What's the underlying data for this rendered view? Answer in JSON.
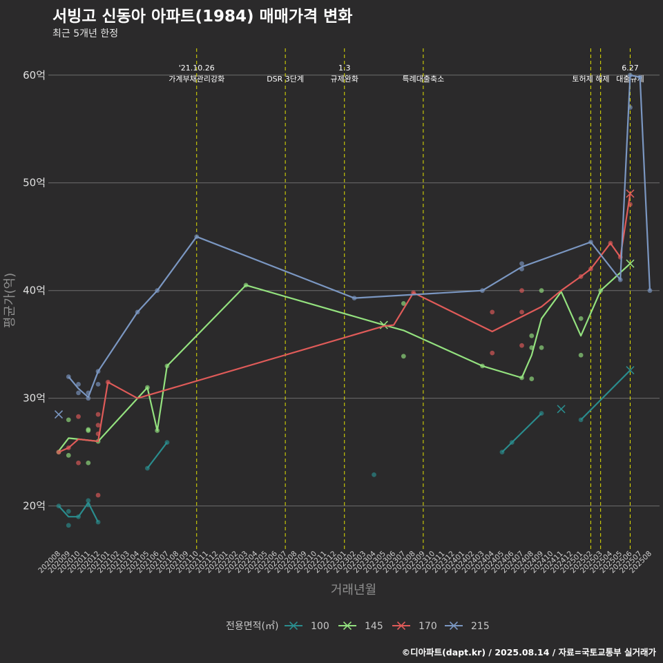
{
  "header": {
    "title": "서빙고 신동아 아파트(1984) 매매가격 변화",
    "subtitle": "최근 5개년 한정",
    "caption": "©디아파트(dapt.kr) / 2025.08.14 / 자료=국토교통부 실거래가"
  },
  "chart_data": {
    "type": "line",
    "xlabel": "거래년월",
    "ylabel": "평균가(억)",
    "x_range": [
      "202008",
      "202508"
    ],
    "ylim": [
      16,
      63
    ],
    "y_ticks": [
      20,
      30,
      40,
      50,
      60
    ],
    "y_tick_labels": [
      "20억",
      "30억",
      "40억",
      "50억",
      "60억"
    ],
    "grid": "horizontal",
    "legend_placement": "bottom",
    "legend_title": "전용면적(㎡)",
    "events": [
      {
        "x": "202110",
        "label": "'21.10.26\n가계부채관리강화"
      },
      {
        "x": "202207",
        "label": "DSR 3단계"
      },
      {
        "x": "202301",
        "label": "1.3\n규제완화"
      },
      {
        "x": "202309",
        "label": "특례대출축소"
      },
      {
        "x": "202502",
        "label": "토허제 해제"
      },
      {
        "x": "202503",
        "label": ""
      },
      {
        "x": "202506",
        "label": "6.27\n대출규제"
      }
    ],
    "series": [
      {
        "name": "100",
        "color": "#2a8d8e",
        "lines": [
          [
            [
              "202008",
              20.0
            ],
            [
              "202009",
              19.0
            ],
            [
              "202010",
              19.0
            ],
            [
              "202011",
              20.3
            ],
            [
              "202012",
              18.5
            ]
          ],
          [
            [
              "202105",
              23.5
            ],
            [
              "202107",
              25.9
            ]
          ],
          [
            [
              "202405",
              25.0
            ],
            [
              "202406",
              25.9
            ],
            [
              "202409",
              28.6
            ]
          ],
          [
            [
              "202501",
              28.0
            ],
            [
              "202506",
              32.6
            ]
          ]
        ],
        "points": [
          [
            "202008",
            20.0
          ],
          [
            "202009",
            19.5
          ],
          [
            "202009",
            18.2
          ],
          [
            "202010",
            19.0
          ],
          [
            "202011",
            20.5
          ],
          [
            "202011",
            20.1
          ],
          [
            "202012",
            18.5
          ],
          [
            "202105",
            23.5
          ],
          [
            "202107",
            25.9
          ],
          [
            "202304",
            22.9
          ],
          [
            "202405",
            25.0
          ],
          [
            "202406",
            25.9
          ],
          [
            "202409",
            28.6
          ],
          [
            "202501",
            28.0
          ]
        ],
        "cross_points": [
          [
            "202411",
            29.0
          ],
          [
            "202506",
            32.6
          ]
        ]
      },
      {
        "name": "145",
        "color": "#94e27f",
        "lines": [
          [
            [
              "202008",
              25.1
            ],
            [
              "202009",
              26.3
            ],
            [
              "202010",
              26.2
            ],
            [
              "202011",
              26.1
            ],
            [
              "202012",
              26.0
            ],
            [
              "202104",
              30.0
            ],
            [
              "202105",
              31.0
            ],
            [
              "202106",
              27.0
            ],
            [
              "202107",
              33.0
            ],
            [
              "202203",
              40.5
            ],
            [
              "202305",
              36.8
            ],
            [
              "202307",
              36.3
            ],
            [
              "202403",
              33.0
            ],
            [
              "202407",
              31.9
            ],
            [
              "202408",
              34.0
            ],
            [
              "202409",
              37.4
            ],
            [
              "202411",
              39.9
            ],
            [
              "202501",
              35.8
            ],
            [
              "202503",
              40.0
            ],
            [
              "202506",
              42.5
            ]
          ]
        ],
        "points": [
          [
            "202008",
            25.0
          ],
          [
            "202009",
            24.7
          ],
          [
            "202009",
            28.0
          ],
          [
            "202011",
            27.0
          ],
          [
            "202011",
            27.1
          ],
          [
            "202011",
            24.0
          ],
          [
            "202012",
            26.0
          ],
          [
            "202105",
            31.0
          ],
          [
            "202106",
            27.0
          ],
          [
            "202107",
            33.0
          ],
          [
            "202203",
            40.5
          ],
          [
            "202307",
            38.8
          ],
          [
            "202307",
            33.9
          ],
          [
            "202403",
            33.0
          ],
          [
            "202407",
            31.9
          ],
          [
            "202408",
            35.8
          ],
          [
            "202408",
            34.7
          ],
          [
            "202408",
            31.8
          ],
          [
            "202409",
            40.0
          ],
          [
            "202409",
            34.7
          ],
          [
            "202501",
            37.4
          ],
          [
            "202501",
            34.0
          ],
          [
            "202503",
            40.0
          ]
        ],
        "cross_points": [
          [
            "202305",
            36.8
          ],
          [
            "202506",
            42.5
          ]
        ]
      },
      {
        "name": "170",
        "color": "#e05b59",
        "lines": [
          [
            [
              "202008",
              25.0
            ],
            [
              "202009",
              25.4
            ],
            [
              "202010",
              26.2
            ],
            [
              "202012",
              26.0
            ],
            [
              "202101",
              31.5
            ],
            [
              "202104",
              30.0
            ],
            [
              "202305",
              36.7
            ],
            [
              "202306",
              36.8
            ],
            [
              "202308",
              39.8
            ],
            [
              "202404",
              36.2
            ],
            [
              "202409",
              38.5
            ],
            [
              "202411",
              40.0
            ],
            [
              "202501",
              41.3
            ],
            [
              "202502",
              42.0
            ],
            [
              "202504",
              44.4
            ],
            [
              "202505",
              43.1
            ],
            [
              "202506",
              49.0
            ]
          ]
        ],
        "points": [
          [
            "202008",
            25.0
          ],
          [
            "202009",
            25.4
          ],
          [
            "202010",
            28.3
          ],
          [
            "202010",
            24.0
          ],
          [
            "202012",
            28.5
          ],
          [
            "202012",
            27.5
          ],
          [
            "202012",
            26.7
          ],
          [
            "202012",
            21.0
          ],
          [
            "202101",
            31.5
          ],
          [
            "202308",
            39.8
          ],
          [
            "202404",
            38.0
          ],
          [
            "202404",
            34.2
          ],
          [
            "202407",
            40.0
          ],
          [
            "202407",
            38.0
          ],
          [
            "202407",
            34.9
          ],
          [
            "202501",
            41.3
          ],
          [
            "202502",
            42.0
          ],
          [
            "202504",
            44.4
          ],
          [
            "202505",
            43.1
          ],
          [
            "202506",
            48.0
          ]
        ],
        "cross_points": [
          [
            "202506",
            49.0
          ]
        ]
      },
      {
        "name": "215",
        "color": "#7b97c2",
        "lines": [
          [
            [
              "202009",
              32.0
            ],
            [
              "202010",
              30.9
            ],
            [
              "202011",
              30.1
            ],
            [
              "202012",
              32.5
            ],
            [
              "202104",
              38.0
            ],
            [
              "202106",
              40.0
            ],
            [
              "202110",
              45.0
            ],
            [
              "202302",
              39.3
            ],
            [
              "202403",
              40.0
            ],
            [
              "202407",
              42.2
            ],
            [
              "202502",
              44.5
            ],
            [
              "202505",
              41.0
            ],
            [
              "202506",
              60.0
            ],
            [
              "202507",
              59.8
            ],
            [
              "202508",
              40.0
            ]
          ]
        ],
        "points": [
          [
            "202009",
            32.0
          ],
          [
            "202010",
            31.3
          ],
          [
            "202010",
            30.5
          ],
          [
            "202011",
            30.5
          ],
          [
            "202011",
            30.0
          ],
          [
            "202012",
            32.5
          ],
          [
            "202012",
            31.3
          ],
          [
            "202104",
            38.0
          ],
          [
            "202106",
            40.0
          ],
          [
            "202110",
            45.0
          ],
          [
            "202302",
            39.3
          ],
          [
            "202403",
            40.0
          ],
          [
            "202407",
            42.5
          ],
          [
            "202407",
            42.0
          ],
          [
            "202502",
            44.5
          ],
          [
            "202505",
            41.0
          ],
          [
            "202506",
            60.0
          ],
          [
            "202506",
            57.0
          ],
          [
            "202507",
            59.8
          ],
          [
            "202508",
            40.0
          ]
        ],
        "cross_points": [
          [
            "202008",
            28.5
          ]
        ]
      }
    ]
  }
}
